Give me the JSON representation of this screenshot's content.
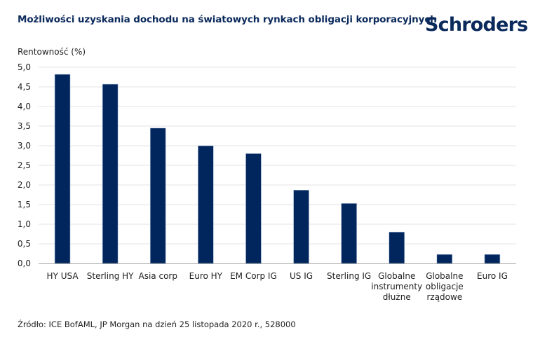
{
  "header": {
    "title": "Możliwości uzyskania dochodu na światowych rynkach obligacji korporacyjnych",
    "logo_text": "Schroders"
  },
  "footer": {
    "source": "Źródło: ICE BofAML, JP Morgan na dzień 25 listopada 2020 r., 528000"
  },
  "colors": {
    "bar": "#00265d",
    "bar_outline": "#b4c3dc",
    "grid": "#e3e3e3",
    "axis": "#a6a6a6",
    "title": "#0b2a5c"
  },
  "chart_data": {
    "type": "bar",
    "title": "Możliwości uzyskania dochodu na światowych rynkach obligacji korporacyjnych",
    "xlabel": "",
    "ylabel": "Rentowność (%)",
    "ylim": [
      0,
      5
    ],
    "grid": true,
    "legend": "none",
    "yticks": [
      {
        "value": 0,
        "label": "0,0"
      },
      {
        "value": 0.5,
        "label": "0,5"
      },
      {
        "value": 1,
        "label": "1,0"
      },
      {
        "value": 1.5,
        "label": "1,5"
      },
      {
        "value": 2,
        "label": "2,0"
      },
      {
        "value": 2.5,
        "label": "2,5"
      },
      {
        "value": 3,
        "label": "3,0"
      },
      {
        "value": 3.5,
        "label": "3,5"
      },
      {
        "value": 4,
        "label": "4,0"
      },
      {
        "value": 4.5,
        "label": "4,5"
      },
      {
        "value": 5,
        "label": "5,0"
      }
    ],
    "categories": [
      [
        "HY USA"
      ],
      [
        "Sterling HY"
      ],
      [
        "Asia corp"
      ],
      [
        "Euro HY"
      ],
      [
        "EM Corp IG"
      ],
      [
        "US IG"
      ],
      [
        "Sterling IG"
      ],
      [
        "Globalne",
        "instrumenty",
        "dłużne"
      ],
      [
        "Globalne",
        "obligacje",
        "rządowe"
      ],
      [
        "Euro IG"
      ]
    ],
    "values": [
      4.82,
      4.57,
      3.45,
      3.0,
      2.8,
      1.87,
      1.53,
      0.8,
      0.23,
      0.23
    ]
  }
}
